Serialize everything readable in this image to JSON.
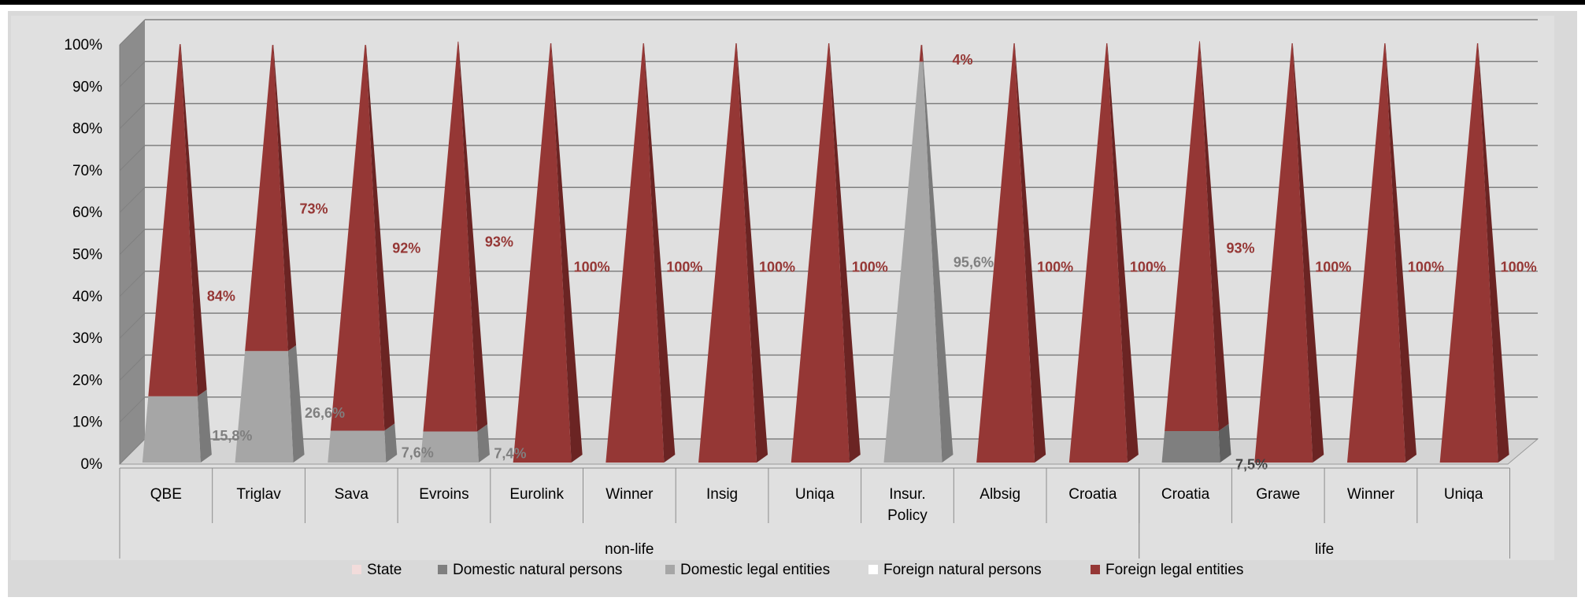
{
  "chart_data": {
    "type": "bar",
    "title": "",
    "xlabel": "",
    "ylabel": "",
    "ylim": [
      0,
      100
    ],
    "y_ticks": [
      "0%",
      "10%",
      "20%",
      "30%",
      "40%",
      "50%",
      "60%",
      "70%",
      "80%",
      "90%",
      "100%"
    ],
    "grid": true,
    "stacked": true,
    "legend_position": "bottom",
    "categories": [
      "QBE",
      "Triglav",
      "Sava",
      "Evroins",
      "Eurolink",
      "Winner",
      "Insig",
      "Uniqa",
      "Insur. Policy",
      "Albsig",
      "Croatia",
      "Croatia",
      "Grawe",
      "Winner",
      "Uniqa"
    ],
    "groups": [
      {
        "label": "non-life",
        "count": 11
      },
      {
        "label": "life",
        "count": 4
      }
    ],
    "series": [
      {
        "name": "State",
        "color": "#f2dcdb",
        "values": [
          0,
          0,
          0,
          0,
          0,
          0,
          0,
          0,
          0,
          0,
          0,
          0,
          0,
          0,
          0
        ]
      },
      {
        "name": "Domestic natural persons",
        "color": "#7f7f7f",
        "values": [
          0,
          0,
          0,
          0,
          0,
          0,
          0,
          0,
          0,
          0,
          0,
          7.5,
          0,
          0,
          0
        ]
      },
      {
        "name": "Domestic legal entities",
        "color": "#a6a6a6",
        "values": [
          15.8,
          26.6,
          7.6,
          7.4,
          0,
          0,
          0,
          0,
          95.6,
          0,
          0,
          0,
          0,
          0,
          0
        ]
      },
      {
        "name": "Foreign natural persons",
        "color": "#ffffff",
        "values": [
          0,
          0,
          0,
          0,
          0,
          0,
          0,
          0,
          0,
          0,
          0,
          0,
          0,
          0,
          0
        ]
      },
      {
        "name": "Foreign legal entities",
        "color": "#953735",
        "values": [
          84,
          73,
          92,
          93,
          100,
          100,
          100,
          100,
          4,
          100,
          100,
          93,
          100,
          100,
          100
        ]
      }
    ],
    "data_labels": {
      "foreign": [
        "84%",
        "73%",
        "92%",
        "93%",
        "100%",
        "100%",
        "100%",
        "100%",
        "4%",
        "100%",
        "100%",
        "93%",
        "100%",
        "100%",
        "100%"
      ],
      "domestic": [
        "15,8%",
        "26,6%",
        "7,6%",
        "7,4%",
        "",
        "",
        "",
        "",
        "95,6%",
        "",
        "",
        "7,5%",
        "",
        "",
        ""
      ]
    },
    "colors": {
      "foreign_label": "#953735",
      "domestic_label": "#7f7f7f",
      "axis_text": "#000000"
    }
  }
}
